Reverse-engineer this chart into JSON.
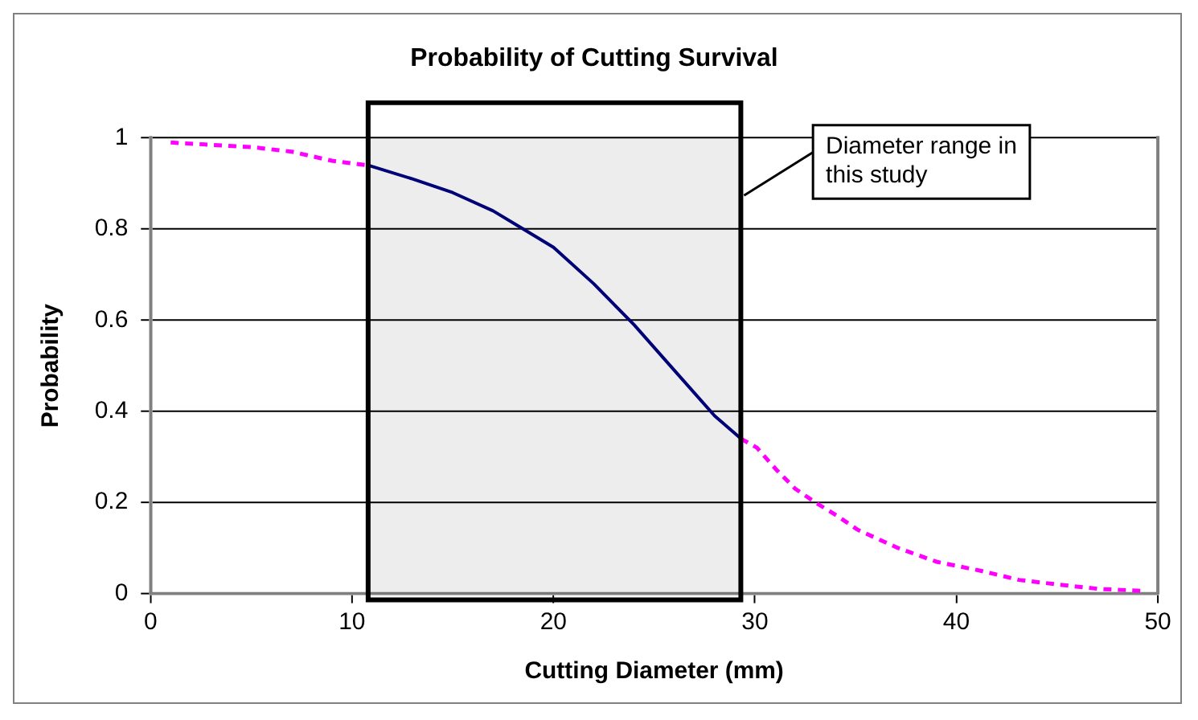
{
  "chart_data": {
    "type": "line",
    "title": "Probability of Cutting Survival",
    "xlabel": "Cutting Diameter (mm)",
    "ylabel": "Probability",
    "xlim": [
      0,
      50
    ],
    "xticks": [
      0,
      10,
      20,
      30,
      40,
      50
    ],
    "ylim": [
      0,
      1
    ],
    "yticks": [
      0,
      0.2,
      0.4,
      0.6,
      0.8,
      1
    ],
    "grid": "y",
    "legend": false,
    "marker": "none",
    "series": [
      {
        "color": "#ff00ff",
        "line_style": "dashed",
        "x": [
          1,
          3,
          5,
          7,
          9,
          10.8,
          20,
          29.3,
          30.1,
          31.1,
          32,
          33,
          34.1,
          35.1,
          37.1,
          39,
          41.2,
          43.1,
          45,
          47.1,
          49.2
        ],
        "values": [
          0.99,
          0.985,
          0.98,
          0.97,
          0.95,
          0.94,
          null,
          0.34,
          0.32,
          0.27,
          0.23,
          0.2,
          0.17,
          0.14,
          0.1,
          0.07,
          0.05,
          0.03,
          0.02,
          0.01,
          0.006
        ]
      },
      {
        "color": "#000080",
        "line_style": "solid",
        "x": [
          10.8,
          13,
          15,
          17,
          18.5,
          20,
          22,
          24,
          26,
          28,
          29.3
        ],
        "values": [
          0.94,
          0.91,
          0.88,
          0.84,
          0.8,
          0.76,
          0.68,
          0.59,
          0.49,
          0.39,
          0.34
        ]
      }
    ],
    "bands": [
      {
        "axis": "x",
        "from": 10.8,
        "to": 29.3,
        "label": "Diameter range in this study",
        "color": "#000000"
      }
    ]
  }
}
